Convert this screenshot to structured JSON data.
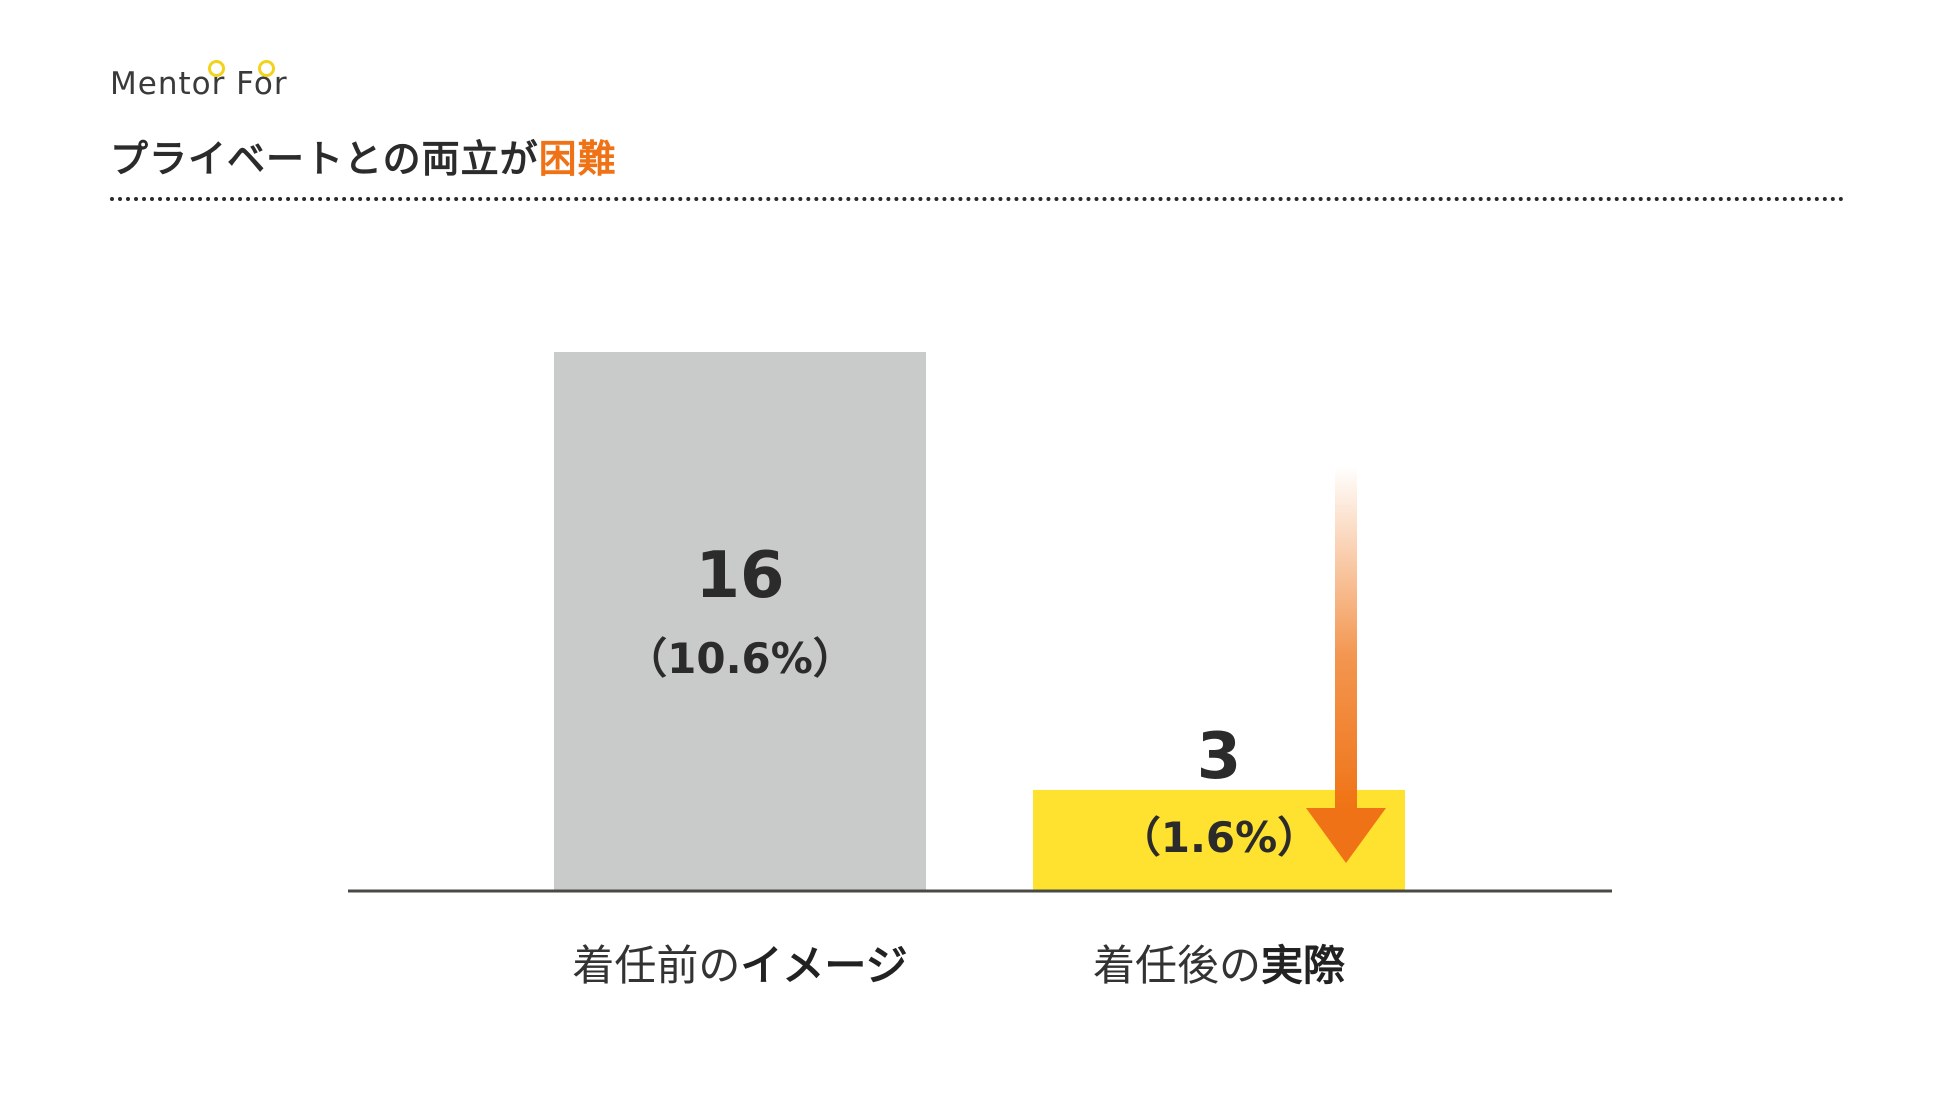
{
  "brand": {
    "logo_text": "Mentor For"
  },
  "header": {
    "title_main": "プライベートとの両立が",
    "title_highlight": "困難"
  },
  "colors": {
    "before_bar": "#c9caca",
    "after_bar": "#ffe12f",
    "arrow": "#ef7316",
    "axis": "#4a4a44",
    "highlight": "#ef7316"
  },
  "chart_data": {
    "type": "bar",
    "categories": [
      {
        "regular": "着任前の",
        "bold": "イメージ"
      },
      {
        "regular": "着任後の",
        "bold": "実際"
      }
    ],
    "values": [
      16,
      3
    ],
    "value_labels": [
      "16",
      "3"
    ],
    "percent_labels": [
      "（10.6%）",
      "（1.6%）"
    ],
    "decrease_arrow": true,
    "ylim": [
      0,
      16
    ]
  }
}
